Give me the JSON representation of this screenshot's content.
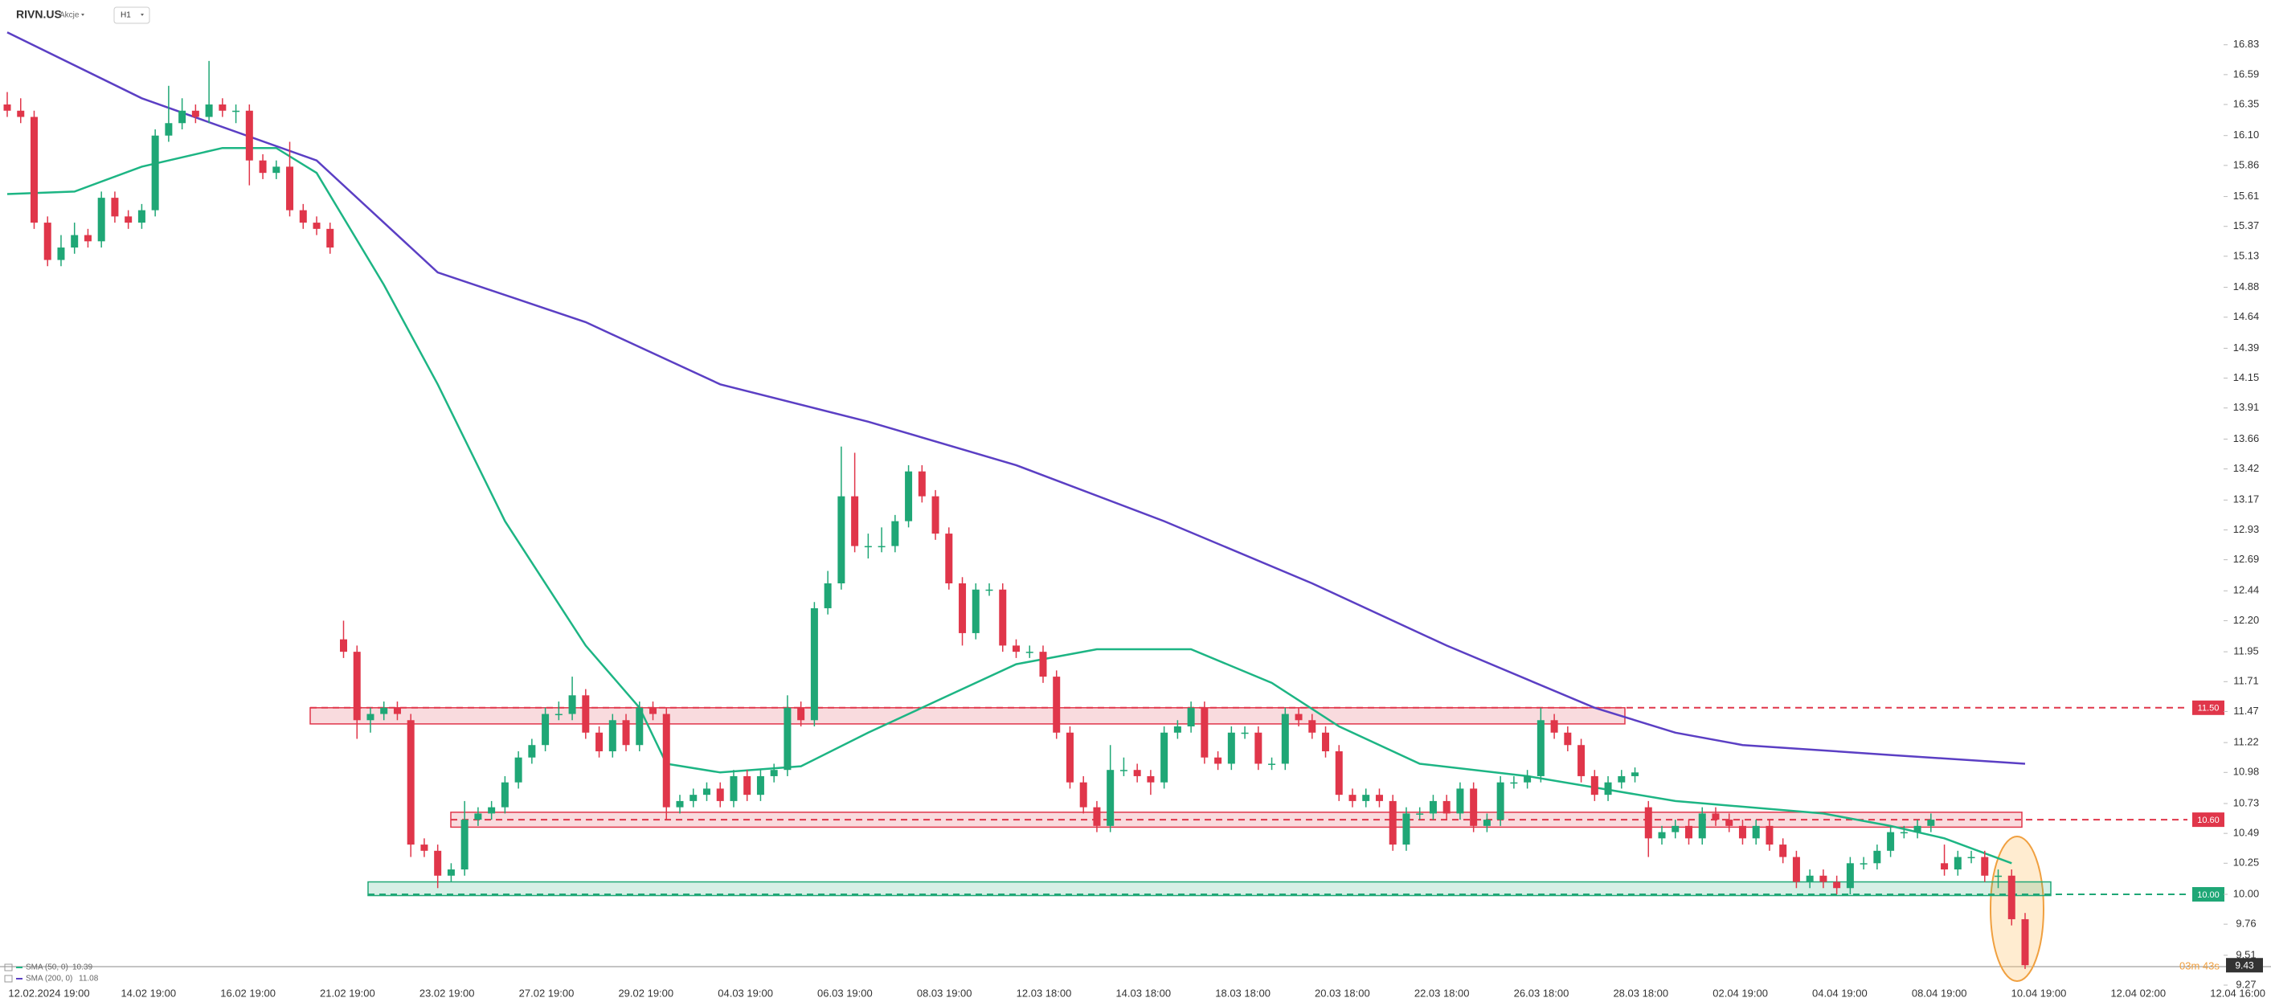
{
  "chart_data": {
    "type": "candlestick",
    "symbol": "RIVN.US",
    "market": "Akcje",
    "timeframe": "H1",
    "up_color": "#1fa776",
    "down_color": "#e0364a",
    "ylim": [
      9.27,
      17.19
    ],
    "yticks": [
      16.83,
      16.59,
      16.35,
      {
        "value": 16.1,
        "label": "16.10"
      },
      15.86,
      15.61,
      15.37,
      15.13,
      14.88,
      14.64,
      14.39,
      14.15,
      13.91,
      13.66,
      13.42,
      13.17,
      12.93,
      12.69,
      12.44,
      {
        "value": 12.2,
        "label": "12.20"
      },
      11.95,
      11.71,
      11.47,
      11.22,
      10.98,
      10.73,
      10.49,
      10.25,
      {
        "value": 10.0,
        "label": "10.00"
      },
      9.76,
      9.51,
      9.27
    ],
    "x_labels": [
      "12.02.2024 19:00",
      "14.02 19:00",
      "16.02 19:00",
      "21.02 19:00",
      "23.02 19:00",
      "27.02 19:00",
      "29.02 19:00",
      "04.03 19:00",
      "06.03 19:00",
      "08.03 19:00",
      "12.03 18:00",
      "14.03 18:00",
      "18.03 18:00",
      "20.03 18:00",
      "22.03 18:00",
      "26.03 18:00",
      "28.03 18:00",
      "02.04 19:00",
      "04.04 19:00",
      "08.04 19:00",
      "10.04 19:00",
      "12.04 02:00",
      "12.04 16:00"
    ],
    "candles": [
      [
        16.35,
        16.45,
        16.25,
        16.3
      ],
      [
        16.3,
        16.4,
        16.2,
        16.25
      ],
      [
        16.25,
        16.3,
        15.35,
        15.4
      ],
      [
        15.4,
        15.45,
        15.05,
        15.1
      ],
      [
        15.1,
        15.3,
        15.05,
        15.2
      ],
      [
        15.2,
        15.4,
        15.15,
        15.3
      ],
      [
        15.3,
        15.35,
        15.2,
        15.25
      ],
      [
        15.25,
        15.65,
        15.2,
        15.6
      ],
      [
        15.6,
        15.65,
        15.4,
        15.45
      ],
      [
        15.45,
        15.5,
        15.35,
        15.4
      ],
      [
        15.4,
        15.55,
        15.35,
        15.5
      ],
      [
        15.5,
        16.15,
        15.45,
        16.1
      ],
      [
        16.1,
        16.5,
        16.05,
        16.2
      ],
      [
        16.2,
        16.4,
        16.15,
        16.3
      ],
      [
        16.3,
        16.35,
        16.2,
        16.25
      ],
      [
        16.25,
        16.7,
        16.2,
        16.35
      ],
      [
        16.35,
        16.4,
        16.25,
        16.3
      ],
      [
        16.3,
        16.35,
        16.2,
        16.3
      ],
      [
        16.3,
        16.35,
        15.7,
        15.9
      ],
      [
        15.9,
        15.95,
        15.75,
        15.8
      ],
      [
        15.8,
        15.9,
        15.75,
        15.85
      ],
      [
        15.85,
        16.05,
        15.45,
        15.5
      ],
      [
        15.5,
        15.55,
        15.35,
        15.4
      ],
      [
        15.4,
        15.45,
        15.3,
        15.35
      ],
      [
        15.35,
        15.4,
        15.15,
        15.2
      ],
      [
        12.05,
        12.2,
        11.9,
        11.95
      ],
      [
        11.95,
        12.0,
        11.25,
        11.4
      ],
      [
        11.4,
        11.5,
        11.3,
        11.45
      ],
      [
        11.45,
        11.55,
        11.4,
        11.5
      ],
      [
        11.5,
        11.55,
        11.4,
        11.45
      ],
      [
        11.4,
        11.45,
        10.3,
        10.4
      ],
      [
        10.4,
        10.45,
        10.3,
        10.35
      ],
      [
        10.35,
        10.4,
        10.05,
        10.15
      ],
      [
        10.15,
        10.25,
        10.1,
        10.2
      ],
      [
        10.2,
        10.75,
        10.15,
        10.6
      ],
      [
        10.6,
        10.7,
        10.55,
        10.65
      ],
      [
        10.65,
        10.75,
        10.6,
        10.7
      ],
      [
        10.7,
        10.95,
        10.65,
        10.9
      ],
      [
        10.9,
        11.15,
        10.85,
        11.1
      ],
      [
        11.1,
        11.25,
        11.05,
        11.2
      ],
      [
        11.2,
        11.5,
        11.15,
        11.45
      ],
      [
        11.45,
        11.55,
        11.4,
        11.45
      ],
      [
        11.45,
        11.75,
        11.4,
        11.6
      ],
      [
        11.6,
        11.65,
        11.25,
        11.3
      ],
      [
        11.3,
        11.35,
        11.1,
        11.15
      ],
      [
        11.15,
        11.45,
        11.1,
        11.4
      ],
      [
        11.4,
        11.45,
        11.15,
        11.2
      ],
      [
        11.2,
        11.55,
        11.15,
        11.5
      ],
      [
        11.5,
        11.55,
        11.4,
        11.45
      ],
      [
        11.45,
        11.5,
        10.6,
        10.7
      ],
      [
        10.7,
        10.8,
        10.65,
        10.75
      ],
      [
        10.75,
        10.85,
        10.7,
        10.8
      ],
      [
        10.8,
        10.9,
        10.75,
        10.85
      ],
      [
        10.85,
        10.9,
        10.7,
        10.75
      ],
      [
        10.75,
        11.0,
        10.7,
        10.95
      ],
      [
        10.95,
        11.0,
        10.75,
        10.8
      ],
      [
        10.8,
        11.0,
        10.75,
        10.95
      ],
      [
        10.95,
        11.05,
        10.9,
        11.0
      ],
      [
        11.0,
        11.6,
        10.95,
        11.5
      ],
      [
        11.5,
        11.55,
        11.35,
        11.4
      ],
      [
        11.4,
        12.35,
        11.35,
        12.3
      ],
      [
        12.3,
        12.6,
        12.25,
        12.5
      ],
      [
        12.5,
        13.6,
        12.45,
        13.2
      ],
      [
        13.2,
        13.55,
        12.75,
        12.8
      ],
      [
        12.8,
        12.9,
        12.7,
        12.8
      ],
      [
        12.8,
        12.95,
        12.75,
        12.8
      ],
      [
        12.8,
        13.05,
        12.75,
        13.0
      ],
      [
        13.0,
        13.45,
        12.95,
        13.4
      ],
      [
        13.4,
        13.45,
        13.15,
        13.2
      ],
      [
        13.2,
        13.25,
        12.85,
        12.9
      ],
      [
        12.9,
        12.95,
        12.45,
        12.5
      ],
      [
        12.5,
        12.55,
        12.0,
        12.1
      ],
      [
        12.1,
        12.5,
        12.05,
        12.45
      ],
      [
        12.45,
        12.5,
        12.4,
        12.45
      ],
      [
        12.45,
        12.5,
        11.95,
        12.0
      ],
      [
        12.0,
        12.05,
        11.9,
        11.95
      ],
      [
        11.95,
        12.0,
        11.9,
        11.95
      ],
      [
        11.95,
        12.0,
        11.7,
        11.75
      ],
      [
        11.75,
        11.8,
        11.25,
        11.3
      ],
      [
        11.3,
        11.35,
        10.85,
        10.9
      ],
      [
        10.9,
        10.95,
        10.65,
        10.7
      ],
      [
        10.7,
        10.75,
        10.5,
        10.55
      ],
      [
        10.55,
        11.2,
        10.5,
        11.0
      ],
      [
        11.0,
        11.1,
        10.95,
        11.0
      ],
      [
        11.0,
        11.05,
        10.9,
        10.95
      ],
      [
        10.95,
        11.0,
        10.8,
        10.9
      ],
      [
        10.9,
        11.35,
        10.85,
        11.3
      ],
      [
        11.3,
        11.4,
        11.25,
        11.35
      ],
      [
        11.35,
        11.55,
        11.3,
        11.5
      ],
      [
        11.5,
        11.55,
        11.05,
        11.1
      ],
      [
        11.1,
        11.15,
        11.0,
        11.05
      ],
      [
        11.05,
        11.35,
        11.0,
        11.3
      ],
      [
        11.3,
        11.35,
        11.25,
        11.3
      ],
      [
        11.3,
        11.35,
        11.0,
        11.05
      ],
      [
        11.05,
        11.1,
        11.0,
        11.05
      ],
      [
        11.05,
        11.5,
        11.0,
        11.45
      ],
      [
        11.45,
        11.5,
        11.35,
        11.4
      ],
      [
        11.4,
        11.45,
        11.25,
        11.3
      ],
      [
        11.3,
        11.35,
        11.1,
        11.15
      ],
      [
        11.15,
        11.2,
        10.75,
        10.8
      ],
      [
        10.8,
        10.85,
        10.7,
        10.75
      ],
      [
        10.75,
        10.85,
        10.7,
        10.8
      ],
      [
        10.8,
        10.85,
        10.7,
        10.75
      ],
      [
        10.75,
        10.8,
        10.35,
        10.4
      ],
      [
        10.4,
        10.7,
        10.35,
        10.65
      ],
      [
        10.65,
        10.7,
        10.6,
        10.65
      ],
      [
        10.65,
        10.8,
        10.6,
        10.75
      ],
      [
        10.75,
        10.8,
        10.6,
        10.65
      ],
      [
        10.65,
        10.9,
        10.6,
        10.85
      ],
      [
        10.85,
        10.9,
        10.5,
        10.55
      ],
      [
        10.55,
        10.65,
        10.5,
        10.6
      ],
      [
        10.6,
        10.95,
        10.55,
        10.9
      ],
      [
        10.9,
        10.95,
        10.85,
        10.9
      ],
      [
        10.9,
        11.0,
        10.85,
        10.95
      ],
      [
        10.95,
        11.5,
        10.9,
        11.4
      ],
      [
        11.4,
        11.45,
        11.25,
        11.3
      ],
      [
        11.3,
        11.35,
        11.15,
        11.2
      ],
      [
        11.2,
        11.25,
        10.9,
        10.95
      ],
      [
        10.95,
        11.0,
        10.75,
        10.8
      ],
      [
        10.8,
        10.95,
        10.75,
        10.9
      ],
      [
        10.9,
        11.0,
        10.85,
        10.95
      ],
      [
        10.95,
        11.02,
        10.9,
        10.98
      ],
      [
        10.7,
        10.75,
        10.3,
        10.45
      ],
      [
        10.45,
        10.55,
        10.4,
        10.5
      ],
      [
        10.5,
        10.6,
        10.45,
        10.55
      ],
      [
        10.55,
        10.6,
        10.4,
        10.45
      ],
      [
        10.45,
        10.7,
        10.4,
        10.65
      ],
      [
        10.65,
        10.7,
        10.55,
        10.6
      ],
      [
        10.6,
        10.65,
        10.5,
        10.55
      ],
      [
        10.55,
        10.6,
        10.4,
        10.45
      ],
      [
        10.45,
        10.6,
        10.4,
        10.55
      ],
      [
        10.55,
        10.6,
        10.35,
        10.4
      ],
      [
        10.4,
        10.45,
        10.25,
        10.3
      ],
      [
        10.3,
        10.35,
        10.05,
        10.1
      ],
      [
        10.1,
        10.2,
        10.05,
        10.15
      ],
      [
        10.15,
        10.2,
        10.05,
        10.1
      ],
      [
        10.1,
        10.15,
        10.0,
        10.05
      ],
      [
        10.05,
        10.3,
        10.0,
        10.25
      ],
      [
        10.25,
        10.3,
        10.2,
        10.25
      ],
      [
        10.25,
        10.4,
        10.2,
        10.35
      ],
      [
        10.35,
        10.55,
        10.3,
        10.5
      ],
      [
        10.5,
        10.55,
        10.45,
        10.5
      ],
      [
        10.5,
        10.6,
        10.45,
        10.55
      ],
      [
        10.55,
        10.65,
        10.5,
        10.6
      ],
      [
        10.25,
        10.4,
        10.15,
        10.2
      ],
      [
        10.2,
        10.35,
        10.15,
        10.3
      ],
      [
        10.3,
        10.35,
        10.25,
        10.3
      ],
      [
        10.3,
        10.35,
        10.1,
        10.15
      ],
      [
        10.15,
        10.2,
        10.05,
        10.15
      ],
      [
        10.15,
        10.2,
        9.75,
        9.8
      ],
      [
        9.8,
        9.85,
        9.4,
        9.43
      ]
    ],
    "sma": [
      {
        "name": "SMA (50, 0)",
        "last": 10.39,
        "color": "#1db584",
        "x": [
          0,
          5,
          10,
          16,
          20,
          23,
          28,
          32,
          37,
          43,
          47,
          49,
          53,
          59,
          64,
          70,
          75,
          81,
          88,
          94,
          99,
          105,
          113,
          124,
          135,
          140,
          144,
          149
        ],
        "values": [
          15.63,
          15.65,
          15.85,
          16.0,
          16.0,
          15.8,
          14.9,
          14.1,
          13.0,
          12.0,
          11.5,
          11.05,
          10.98,
          11.03,
          11.3,
          11.6,
          11.85,
          11.97,
          11.97,
          11.7,
          11.35,
          11.05,
          10.95,
          10.75,
          10.65,
          10.55,
          10.45,
          10.25
        ]
      },
      {
        "name": "SMA (200, 0)",
        "last": 11.08,
        "color": "#5b3fc4",
        "x": [
          0,
          10,
          23,
          32,
          43,
          53,
          64,
          75,
          86,
          97,
          107,
          118,
          124,
          129,
          140,
          150
        ],
        "values": [
          16.93,
          16.4,
          15.9,
          15.0,
          14.6,
          14.1,
          13.8,
          13.45,
          13.0,
          12.5,
          12.0,
          11.5,
          11.3,
          11.2,
          11.12,
          11.05
        ]
      }
    ],
    "levels": [
      {
        "value": 11.5,
        "label": "11.50",
        "color": "#e0364a"
      },
      {
        "value": 10.6,
        "label": "10.60",
        "color": "#e0364a"
      },
      {
        "value": 10.0,
        "label": "10.00",
        "color": "#1fa776"
      }
    ],
    "zones": [
      {
        "low": 11.37,
        "high": 11.5,
        "color": "#e0364a"
      },
      {
        "low": 10.54,
        "high": 10.66,
        "color": "#e0364a"
      },
      {
        "low": 9.99,
        "high": 10.1,
        "color": "#1fa776"
      }
    ],
    "last_price": 9.43,
    "countdown": "03m 43s"
  }
}
